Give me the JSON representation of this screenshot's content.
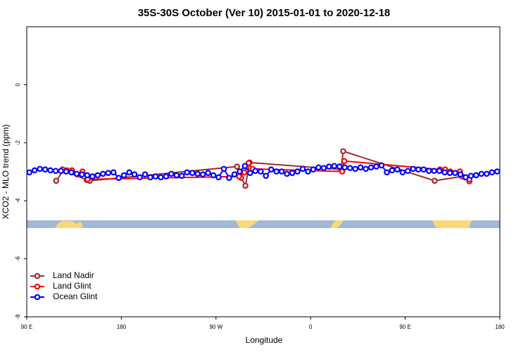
{
  "chart_data": {
    "type": "line",
    "title": "35S-30S October (Ver 10)   2015-01-01 to 2020-12-18",
    "xlabel": "Longitude",
    "ylabel": "XCO2 - MLO trend (ppm)",
    "xlim": [
      90,
      540
    ],
    "xticks": [
      {
        "value": 90,
        "label": "90 E"
      },
      180,
      {
        "value": 270,
        "label": "90 W"
      },
      {
        "value": 360,
        "label": "0"
      },
      {
        "value": 450,
        "label": "90 E"
      },
      {
        "value": 540,
        "label": "180"
      }
    ],
    "ylim": [
      -8,
      2
    ],
    "yticks": [
      -8,
      -6,
      -4,
      -2,
      0
    ],
    "legend": "bottom-left",
    "series": [
      {
        "name": "Land Nadir",
        "color": "#a52a2a",
        "x": [
          118,
          125,
          147,
          150,
          290,
          294,
          298,
          302,
          389,
          391,
          478,
          504,
          511
        ],
        "values": [
          -3.31,
          -2.95,
          -3.28,
          -3.31,
          -2.82,
          -3.21,
          -3.48,
          -2.68,
          -2.92,
          -2.29,
          -3.31,
          -3.16,
          -3.33
        ]
      },
      {
        "name": "Land Glint",
        "color": "#ff0000",
        "x": [
          124,
          128,
          133,
          138,
          143,
          148,
          292,
          297,
          301,
          305,
          390,
          392,
          483,
          488,
          493,
          502,
          507,
          511
        ],
        "values": [
          -2.92,
          -2.95,
          -2.95,
          -3.09,
          -2.99,
          -3.26,
          -3.16,
          -3.02,
          -2.7,
          -2.9,
          -2.99,
          -2.63,
          -2.92,
          -2.92,
          -2.99,
          -2.99,
          -3.19,
          -3.26
        ]
      },
      {
        "name": "Ocean Glint",
        "color": "#0000ff",
        "x": [
          92.5,
          97.5,
          102.5,
          107.5,
          112.5,
          117.5,
          122.5,
          127.5,
          132.5,
          137.5,
          142.5,
          147.5,
          152.5,
          157.5,
          162.5,
          167.5,
          172.5,
          177.5,
          182.5,
          187.5,
          192.5,
          197.5,
          202.5,
          207.5,
          212.5,
          217.5,
          222.5,
          227.5,
          232.5,
          237.5,
          242.5,
          247.5,
          252.5,
          257.5,
          262.5,
          267.5,
          272.5,
          277.5,
          282.5,
          287.5,
          292.5,
          297.5,
          302.5,
          307.5,
          312.5,
          317.5,
          322.5,
          327.5,
          332.5,
          337.5,
          342.5,
          347.5,
          352.5,
          357.5,
          362.5,
          367.5,
          372.5,
          377.5,
          382.5,
          387.5,
          392.5,
          397.5,
          402.5,
          407.5,
          412.5,
          417.5,
          422.5,
          427.5,
          432.5,
          437.5,
          442.5,
          447.5,
          452.5,
          457.5,
          462.5,
          467.5,
          472.5,
          477.5,
          482.5,
          487.5,
          492.5,
          497.5,
          502.5,
          507.5,
          512.5,
          517.5,
          522.5,
          527.5,
          532.5,
          537.5
        ],
        "values": [
          -3.02,
          -2.95,
          -2.9,
          -2.92,
          -2.95,
          -2.97,
          -2.97,
          -2.99,
          -3.02,
          -3.07,
          -3.09,
          -3.12,
          -3.16,
          -3.12,
          -3.07,
          -3.04,
          -3.02,
          -3.21,
          -3.12,
          -3.02,
          -3.09,
          -3.19,
          -3.09,
          -3.19,
          -3.16,
          -3.19,
          -3.16,
          -3.07,
          -3.12,
          -3.14,
          -3.02,
          -3.04,
          -3.07,
          -3.09,
          -3.04,
          -3.12,
          -3.19,
          -2.9,
          -3.21,
          -3.09,
          -2.99,
          -2.8,
          -3.04,
          -2.97,
          -2.99,
          -3.14,
          -2.92,
          -2.99,
          -2.99,
          -3.07,
          -3.04,
          -2.99,
          -2.9,
          -2.99,
          -2.92,
          -2.85,
          -2.87,
          -2.82,
          -2.8,
          -2.82,
          -2.85,
          -2.87,
          -2.9,
          -2.85,
          -2.9,
          -2.85,
          -2.82,
          -2.78,
          -3.02,
          -2.95,
          -2.92,
          -3.02,
          -2.97,
          -2.9,
          -2.92,
          -2.92,
          -2.97,
          -2.97,
          -2.97,
          -3.02,
          -3.04,
          -3.04,
          -3.09,
          -3.19,
          -3.14,
          -3.12,
          -3.07,
          -3.07,
          -3.02,
          -2.99
        ]
      }
    ]
  }
}
